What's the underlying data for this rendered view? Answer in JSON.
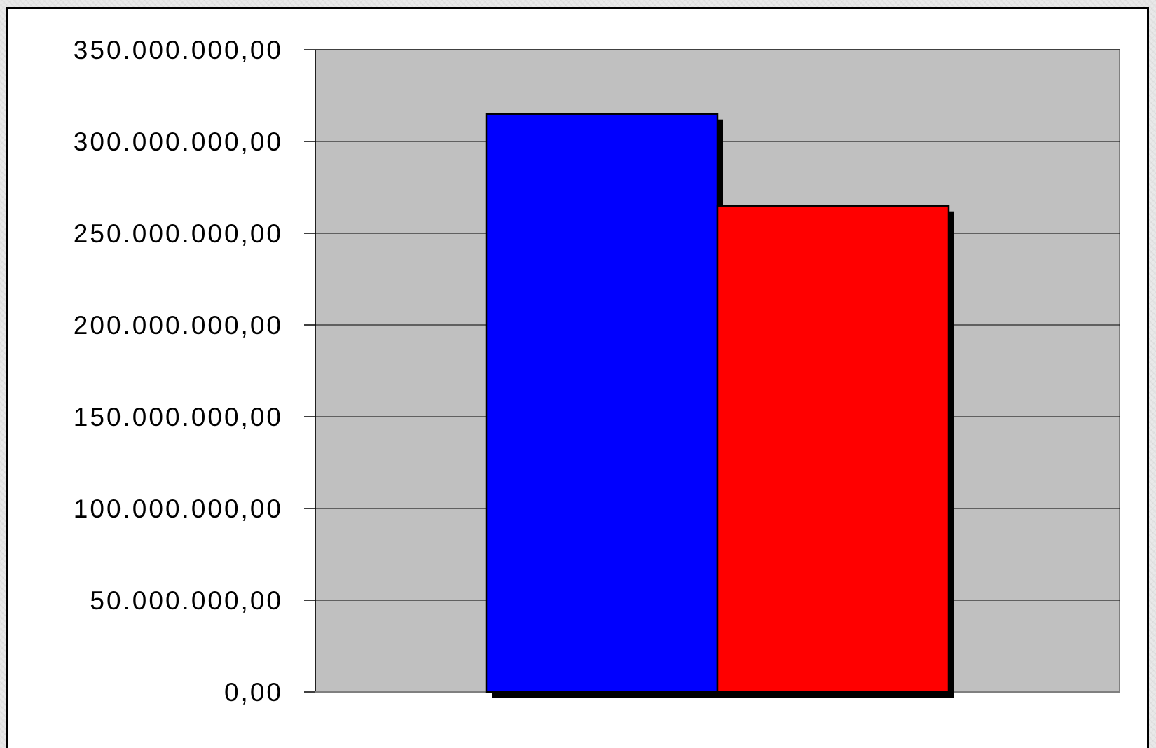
{
  "chart_data": {
    "type": "bar",
    "title": "",
    "xlabel": "",
    "ylabel": "",
    "categories": [
      ""
    ],
    "series": [
      {
        "color": "#0000ff",
        "values": [
          315000000
        ]
      },
      {
        "color": "#ff0000",
        "values": [
          265000000
        ]
      }
    ],
    "ylim": [
      0,
      350000000
    ],
    "yticks": [
      0,
      50000000,
      100000000,
      150000000,
      200000000,
      250000000,
      300000000,
      350000000
    ],
    "ytick_labels": [
      "0,00",
      "50.000.000,00",
      "100.000.000,00",
      "150.000.000,00",
      "200.000.000,00",
      "250.000.000,00",
      "300.000.000,00",
      "350.000.000,00"
    ],
    "grid": true,
    "legend": "none",
    "plot_background": "#c0c0c0"
  }
}
